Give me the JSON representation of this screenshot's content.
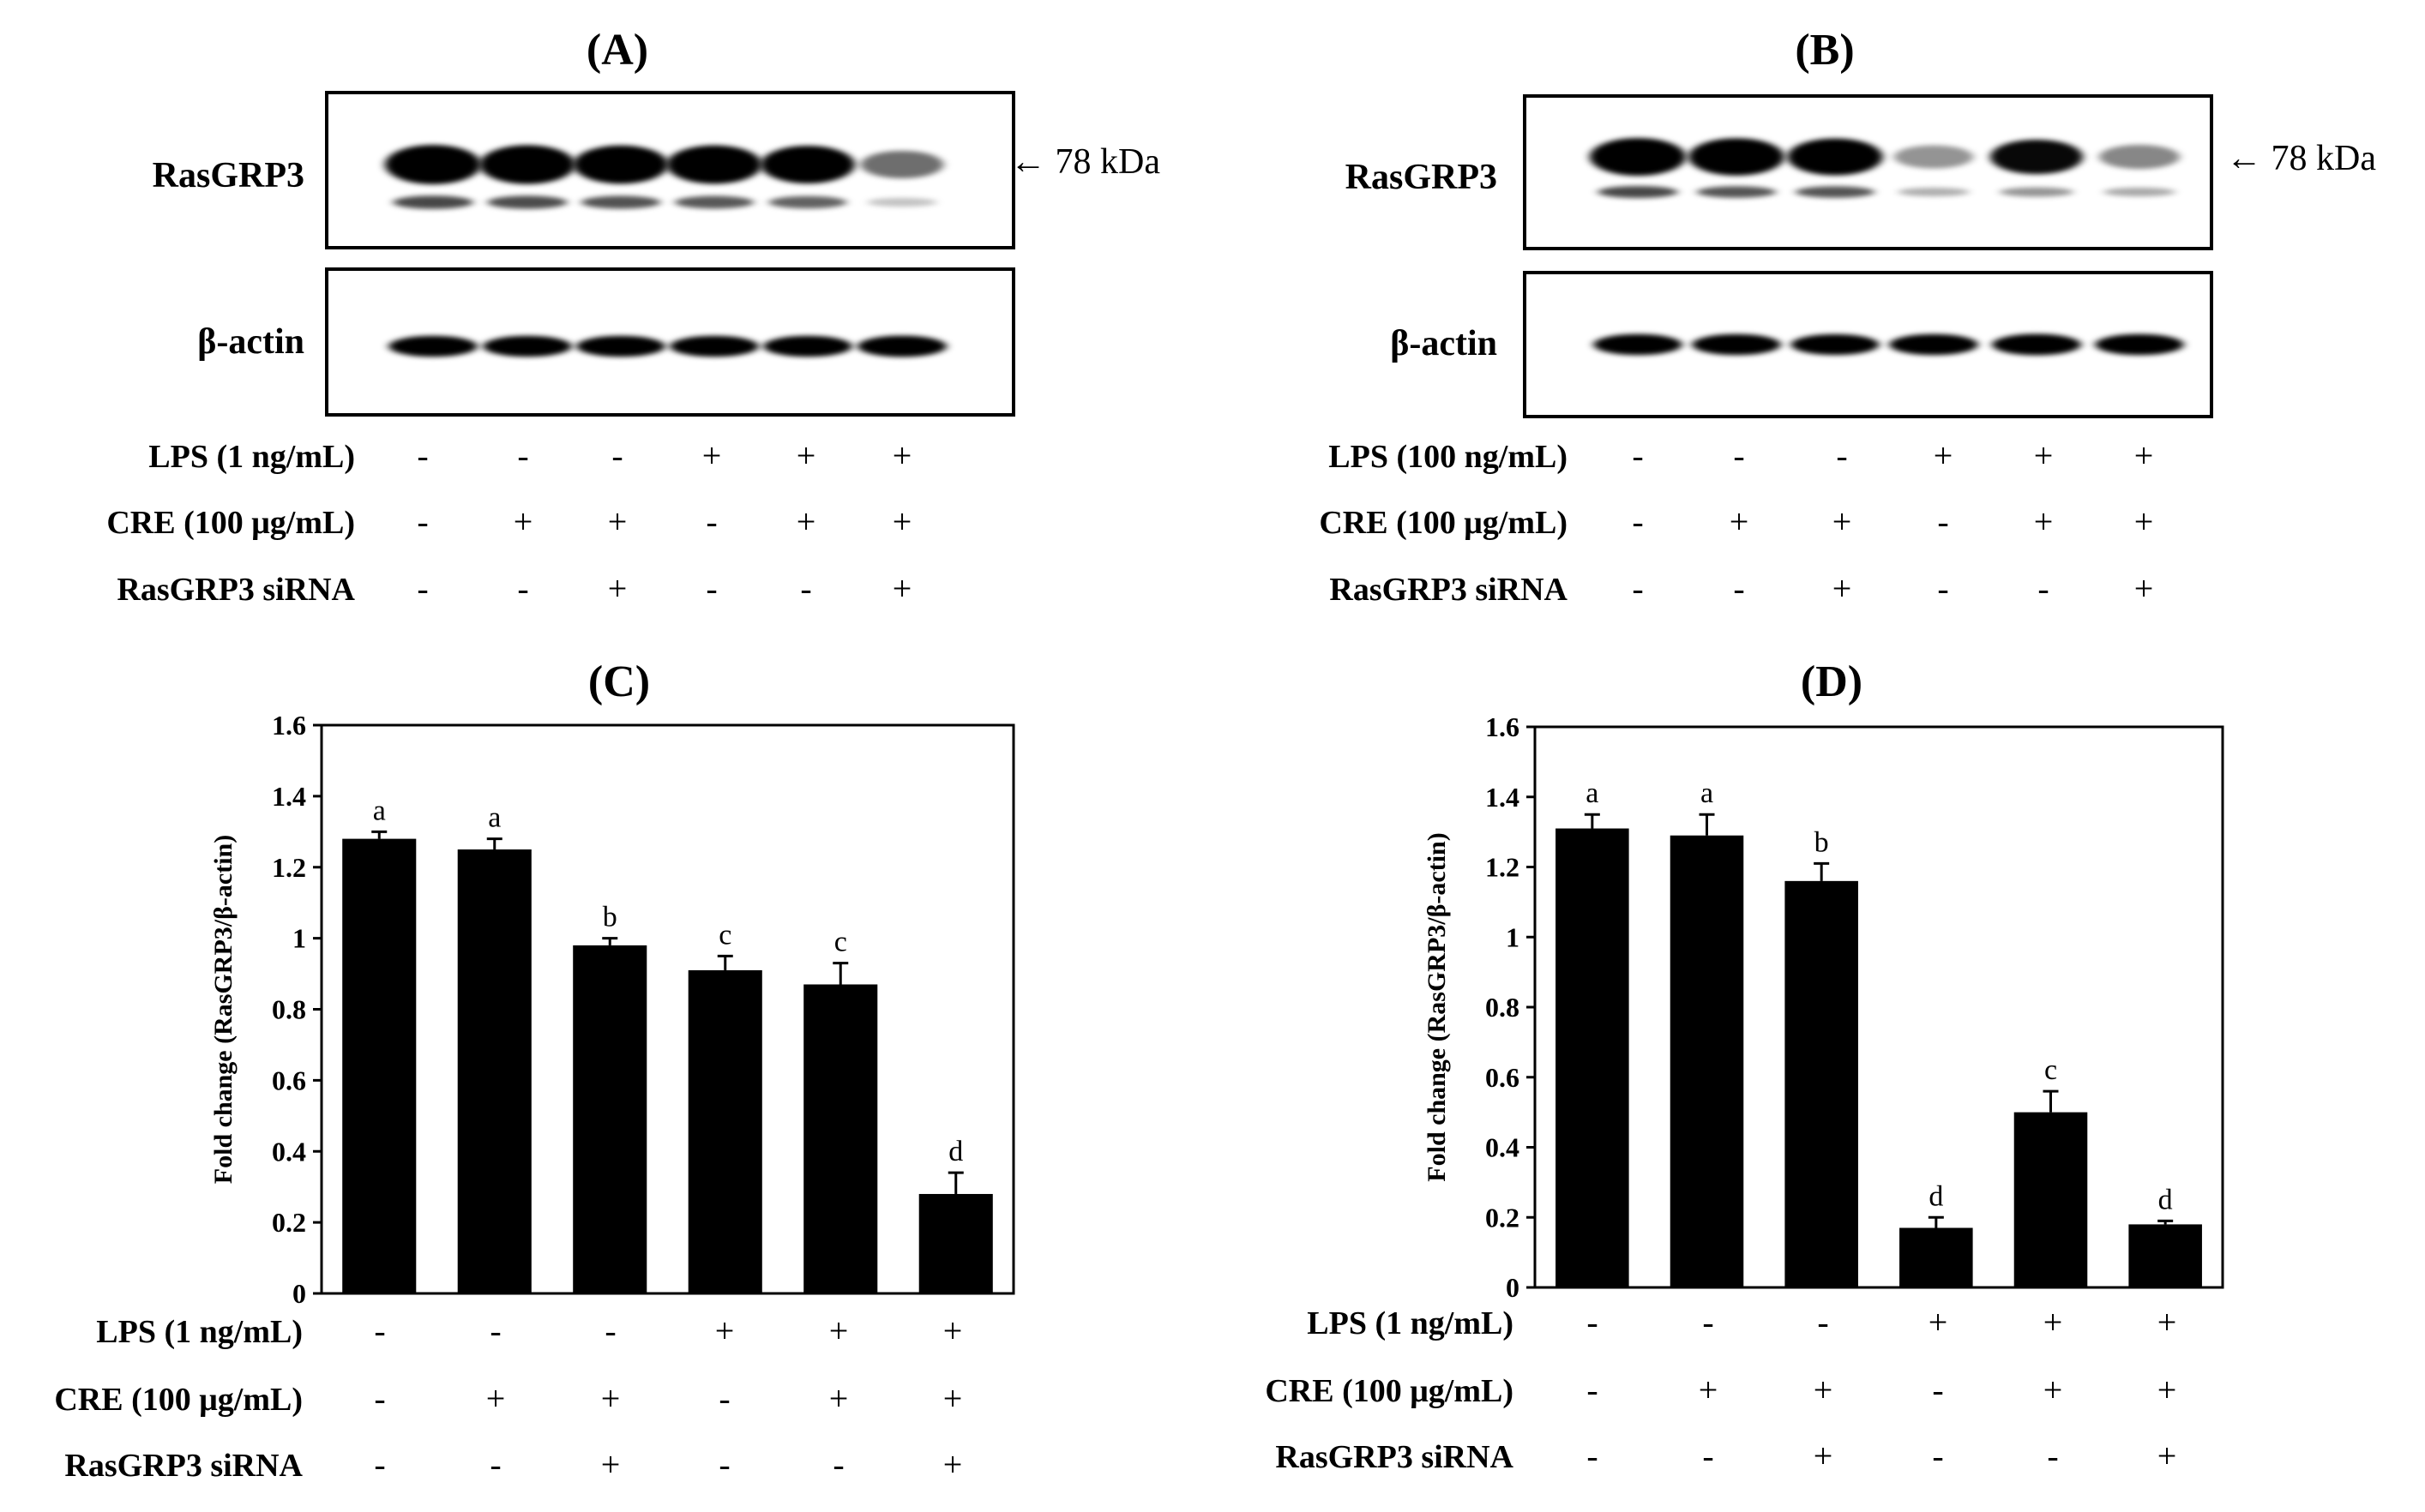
{
  "panels": {
    "A": {
      "label": "(A)",
      "blot": {
        "target_label": "RasGRP3",
        "loading_label": "β-actin",
        "marker_label": "← 78 kDa",
        "upper_band_intensity": [
          1.0,
          0.98,
          0.95,
          0.96,
          0.92,
          0.45
        ],
        "lower_band_intensity": [
          0.6,
          0.58,
          0.56,
          0.54,
          0.5,
          0.12
        ],
        "actin_band_intensity": [
          0.9,
          0.9,
          0.9,
          0.9,
          0.9,
          0.92
        ]
      },
      "treatments": {
        "rows": [
          "LPS (1 ng/mL)",
          "CRE (100 μg/mL)",
          "RasGRP3 siRNA"
        ],
        "signs": [
          [
            "-",
            "-",
            "-",
            "+",
            "+",
            "+"
          ],
          [
            "-",
            "+",
            "+",
            "-",
            "+",
            "+"
          ],
          [
            "-",
            "-",
            "+",
            "-",
            "-",
            "+"
          ]
        ]
      }
    },
    "B": {
      "label": "(B)",
      "blot": {
        "target_label": "RasGRP3",
        "loading_label": "β-actin",
        "marker_label": "← 78 kDa",
        "upper_band_intensity": [
          1.0,
          0.98,
          0.96,
          0.3,
          0.85,
          0.35
        ],
        "lower_band_intensity": [
          0.6,
          0.55,
          0.55,
          0.2,
          0.3,
          0.22
        ],
        "actin_band_intensity": [
          0.9,
          0.9,
          0.88,
          0.9,
          0.92,
          0.9
        ]
      },
      "treatments": {
        "rows": [
          "LPS (100 ng/mL)",
          "CRE (100 μg/mL)",
          "RasGRP3 siRNA"
        ],
        "signs": [
          [
            "-",
            "-",
            "-",
            "+",
            "+",
            "+"
          ],
          [
            "-",
            "+",
            "+",
            "-",
            "+",
            "+"
          ],
          [
            "-",
            "-",
            "+",
            "-",
            "-",
            "+"
          ]
        ]
      }
    },
    "C": {
      "label": "(C)",
      "treatments": {
        "rows": [
          "LPS (1 ng/mL)",
          "CRE (100 μg/mL)",
          "RasGRP3 siRNA"
        ],
        "signs": [
          [
            "-",
            "-",
            "-",
            "+",
            "+",
            "+"
          ],
          [
            "-",
            "+",
            "+",
            "-",
            "+",
            "+"
          ],
          [
            "-",
            "-",
            "+",
            "-",
            "-",
            "+"
          ]
        ]
      }
    },
    "D": {
      "label": "(D)",
      "treatments": {
        "rows": [
          "LPS (1 ng/mL)",
          "CRE (100 μg/mL)",
          "RasGRP3 siRNA"
        ],
        "signs": [
          [
            "-",
            "-",
            "-",
            "+",
            "+",
            "+"
          ],
          [
            "-",
            "+",
            "+",
            "-",
            "+",
            "+"
          ],
          [
            "-",
            "-",
            "+",
            "-",
            "-",
            "+"
          ]
        ]
      }
    }
  },
  "chart_data": [
    {
      "panel": "C",
      "type": "bar",
      "title": "",
      "xlabel": "",
      "ylabel": "Fold change (RasGRP3/β-actin)",
      "ylim": [
        0,
        1.6
      ],
      "yticks": [
        0,
        0.2,
        0.4,
        0.6,
        0.8,
        1,
        1.2,
        1.4,
        1.6
      ],
      "ytick_labels": [
        "0",
        "0.2",
        "0.4",
        "0.6",
        "0.8",
        "1",
        "1.2",
        "1.4",
        "1.6"
      ],
      "values": [
        1.28,
        1.25,
        0.98,
        0.91,
        0.87,
        0.28
      ],
      "errors": [
        0.02,
        0.03,
        0.02,
        0.04,
        0.06,
        0.06
      ],
      "letters": [
        "a",
        "a",
        "b",
        "c",
        "c",
        "d"
      ],
      "bar_color": "#000000",
      "grid": false
    },
    {
      "panel": "D",
      "type": "bar",
      "title": "",
      "xlabel": "",
      "ylabel": "Fold change (RasGRP3/β-actin)",
      "ylim": [
        0,
        1.6
      ],
      "yticks": [
        0,
        0.2,
        0.4,
        0.6,
        0.8,
        1,
        1.2,
        1.4,
        1.6
      ],
      "ytick_labels": [
        "0",
        "0.2",
        "0.4",
        "0.6",
        "0.8",
        "1",
        "1.2",
        "1.4",
        "1.6"
      ],
      "values": [
        1.31,
        1.29,
        1.16,
        0.17,
        0.5,
        0.18
      ],
      "errors": [
        0.04,
        0.06,
        0.05,
        0.03,
        0.06,
        0.01
      ],
      "letters": [
        "a",
        "a",
        "b",
        "d",
        "c",
        "d"
      ],
      "bar_color": "#000000",
      "grid": false
    }
  ]
}
